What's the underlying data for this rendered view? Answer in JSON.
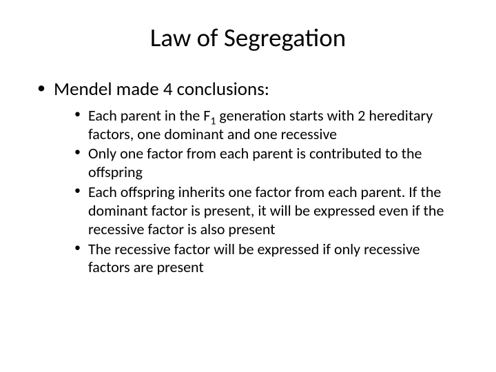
{
  "title": "Law of Segregation",
  "main_bullet": "Mendel made 4 conclusions:",
  "sub_bullets": {
    "b1_pre": "Each parent in the F",
    "b1_sub": "1",
    "b1_post": " generation starts with 2 hereditary factors, one dominant and one recessive",
    "b2": "Only one factor from each parent is contributed to the offspring",
    "b3": "Each offspring inherits one factor from each parent. If the dominant factor is present, it will be expressed even if the recessive factor is also present",
    "b4": "The recessive factor will be expressed if only recessive factors are present"
  },
  "style": {
    "background_color": "#ffffff",
    "text_color": "#000000",
    "title_fontsize": 37,
    "level1_fontsize": 27,
    "level2_fontsize": 22,
    "font_family": "Calibri"
  }
}
